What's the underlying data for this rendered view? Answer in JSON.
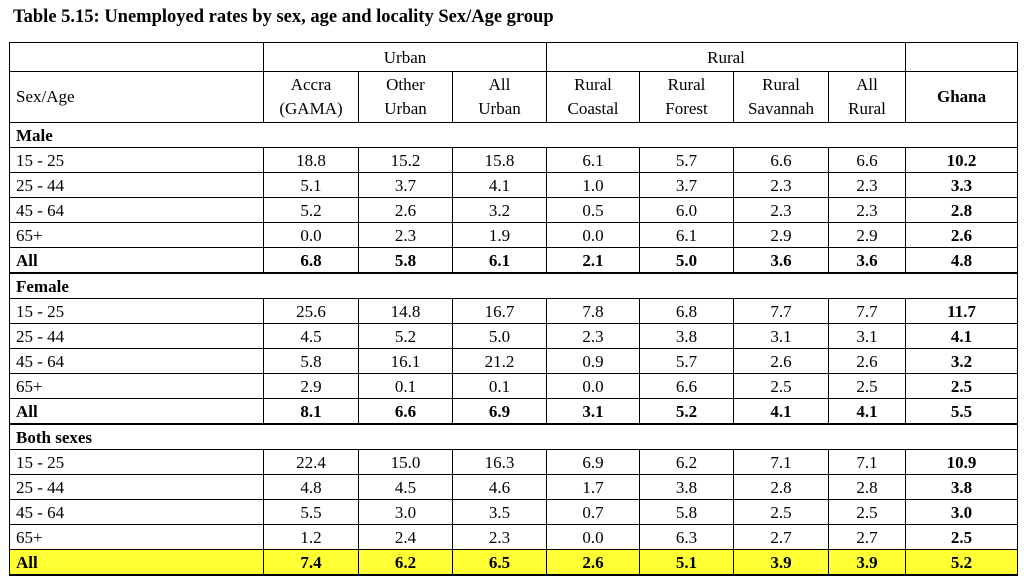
{
  "title": "Table 5.15: Unemployed rates by sex, age and locality Sex/Age group",
  "header": {
    "row_label": "Sex/Age",
    "urban_group": "Urban",
    "rural_group": "Rural",
    "ghana": "Ghana",
    "columns": [
      {
        "line1": "Accra",
        "line2": "(GAMA)"
      },
      {
        "line1": "Other",
        "line2": "Urban"
      },
      {
        "line1": "All",
        "line2": "Urban"
      },
      {
        "line1": "Rural",
        "line2": "Coastal"
      },
      {
        "line1": "Rural",
        "line2": "Forest"
      },
      {
        "line1": "Rural",
        "line2": "Savannah"
      },
      {
        "line1": "All",
        "line2": "Rural"
      }
    ]
  },
  "sections": [
    {
      "label": "Male",
      "rows": [
        {
          "label": "15 - 25",
          "values": [
            "18.8",
            "15.2",
            "15.8",
            "6.1",
            "5.7",
            "6.6",
            "6.6",
            "10.2"
          ]
        },
        {
          "label": "25 - 44",
          "values": [
            "5.1",
            "3.7",
            "4.1",
            "1.0",
            "3.7",
            "2.3",
            "2.3",
            "3.3"
          ]
        },
        {
          "label": "45 - 64",
          "values": [
            "5.2",
            "2.6",
            "3.2",
            "0.5",
            "6.0",
            "2.3",
            "2.3",
            "2.8"
          ]
        },
        {
          "label": "65+",
          "values": [
            "0.0",
            "2.3",
            "1.9",
            "0.0",
            "6.1",
            "2.9",
            "2.9",
            "2.6"
          ]
        },
        {
          "label": "All",
          "values": [
            "6.8",
            "5.8",
            "6.1",
            "2.1",
            "5.0",
            "3.6",
            "3.6",
            "4.8"
          ]
        }
      ]
    },
    {
      "label": "Female",
      "rows": [
        {
          "label": "15 - 25",
          "values": [
            "25.6",
            "14.8",
            "16.7",
            "7.8",
            "6.8",
            "7.7",
            "7.7",
            "11.7"
          ]
        },
        {
          "label": "25 - 44",
          "values": [
            "4.5",
            "5.2",
            "5.0",
            "2.3",
            "3.8",
            "3.1",
            "3.1",
            "4.1"
          ]
        },
        {
          "label": "45 - 64",
          "values": [
            "5.8",
            "16.1",
            "21.2",
            "0.9",
            "5.7",
            "2.6",
            "2.6",
            "3.2"
          ]
        },
        {
          "label": "65+",
          "values": [
            "2.9",
            "0.1",
            "0.1",
            "0.0",
            "6.6",
            "2.5",
            "2.5",
            "2.5"
          ]
        },
        {
          "label": "All",
          "values": [
            "8.1",
            "6.6",
            "6.9",
            "3.1",
            "5.2",
            "4.1",
            "4.1",
            "5.5"
          ]
        }
      ]
    },
    {
      "label": "Both sexes",
      "rows": [
        {
          "label": "15 - 25",
          "values": [
            "22.4",
            "15.0",
            "16.3",
            "6.9",
            "6.2",
            "7.1",
            "7.1",
            "10.9"
          ]
        },
        {
          "label": "25 - 44",
          "values": [
            "4.8",
            "4.5",
            "4.6",
            "1.7",
            "3.8",
            "2.8",
            "2.8",
            "3.8"
          ]
        },
        {
          "label": "45 - 64",
          "values": [
            "5.5",
            "3.0",
            "3.5",
            "0.7",
            "5.8",
            "2.5",
            "2.5",
            "3.0"
          ]
        },
        {
          "label": "65+",
          "values": [
            "1.2",
            "2.4",
            "2.3",
            "0.0",
            "6.3",
            "2.7",
            "2.7",
            "2.5"
          ]
        },
        {
          "label": "All",
          "values": [
            "7.4",
            "6.2",
            "6.5",
            "2.6",
            "5.1",
            "3.9",
            "3.9",
            "5.2"
          ]
        }
      ]
    }
  ],
  "colors": {
    "highlight": "#ffff33"
  }
}
